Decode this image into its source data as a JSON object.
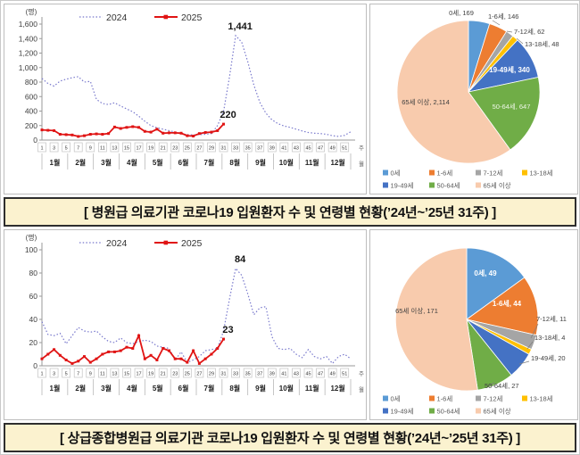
{
  "panels": [
    {
      "banner": "[ 병원급 의료기관 코로나19 입원환자 수 및 연령별 현황(’24년~’25년 31주) ]"
    },
    {
      "banner": "[ 상급종합병원급 의료기관 코로나19 입원환자 수 및 연령별 현황(’24년~’25년 31주) ]"
    }
  ],
  "chart_data": [
    {
      "id": "hospital-weekly-line",
      "type": "line",
      "title": "",
      "unit": "(명)",
      "ylim": [
        0,
        1600
      ],
      "ytick_step": 200,
      "grid": false,
      "legend_position": "top",
      "legend": [
        "2024",
        "2025"
      ],
      "x_axis": {
        "weeks": 52,
        "week_ticks": [
          1,
          3,
          5,
          7,
          9,
          11,
          13,
          15,
          17,
          19,
          21,
          23,
          25,
          27,
          29,
          31,
          33,
          35,
          37,
          39,
          41,
          43,
          45,
          47,
          49,
          51
        ],
        "week_suffix": "주",
        "month_labels": [
          "1월",
          "2월",
          "3월",
          "4월",
          "5월",
          "6월",
          "7월",
          "8월",
          "9월",
          "10월",
          "11월",
          "12월"
        ],
        "month_suffix": "월"
      },
      "series": [
        {
          "name": "2024",
          "color": "#7878cc",
          "style": "dotted",
          "values": [
            850,
            780,
            745,
            815,
            840,
            860,
            875,
            800,
            810,
            560,
            505,
            490,
            515,
            470,
            430,
            390,
            330,
            260,
            200,
            170,
            150,
            130,
            110,
            90,
            75,
            70,
            75,
            80,
            90,
            200,
            390,
            880,
            1441,
            1350,
            1080,
            760,
            520,
            370,
            280,
            225,
            195,
            175,
            150,
            125,
            105,
            95,
            90,
            80,
            60,
            50,
            65,
            115
          ]
        },
        {
          "name": "2025",
          "color": "#e01414",
          "style": "solid-marker",
          "values": [
            140,
            135,
            130,
            80,
            75,
            70,
            50,
            60,
            80,
            85,
            80,
            90,
            180,
            160,
            175,
            185,
            175,
            120,
            110,
            150,
            95,
            100,
            100,
            95,
            60,
            55,
            90,
            105,
            110,
            130,
            220
          ]
        }
      ],
      "annotations": [
        {
          "text": "1,441",
          "week": 33,
          "value": 1441
        },
        {
          "text": "220",
          "week": 31,
          "value": 220
        }
      ]
    },
    {
      "id": "hospital-age-pie",
      "type": "pie",
      "title": "",
      "slices": [
        {
          "label": "0세",
          "value": 169,
          "display": "0세, 169",
          "color": "#5B9BD5"
        },
        {
          "label": "1-6세",
          "value": 146,
          "display": "1-6세, 146",
          "color": "#ED7D31"
        },
        {
          "label": "7-12세",
          "value": 62,
          "display": "7-12세, 62",
          "color": "#A5A5A5"
        },
        {
          "label": "13-18세",
          "value": 48,
          "display": "13-18세, 48",
          "color": "#FFC000"
        },
        {
          "label": "19-49세",
          "value": 340,
          "display": "19-49세, 340",
          "color": "#4472C4"
        },
        {
          "label": "50-64세",
          "value": 647,
          "display": "50-64세, 647",
          "color": "#70AD47"
        },
        {
          "label": "65세 이상",
          "value": 2114,
          "display": "65세 이상, 2,114",
          "color": "#F8CBAD"
        }
      ],
      "legend_rows": [
        [
          "0세",
          "1-6세",
          "7-12세",
          "13-18세"
        ],
        [
          "19-49세",
          "50-64세",
          "65세 이상"
        ]
      ]
    },
    {
      "id": "tertiary-weekly-line",
      "type": "line",
      "title": "",
      "unit": "(명)",
      "ylim": [
        0,
        100
      ],
      "ytick_step": 20,
      "grid": false,
      "legend_position": "top",
      "legend": [
        "2024",
        "2025"
      ],
      "x_axis": {
        "weeks": 52,
        "week_ticks": [
          1,
          3,
          5,
          7,
          9,
          11,
          13,
          15,
          17,
          19,
          21,
          23,
          25,
          27,
          29,
          31,
          33,
          35,
          37,
          39,
          41,
          43,
          45,
          47,
          49,
          51
        ],
        "week_suffix": "주",
        "month_labels": [
          "1월",
          "2월",
          "3월",
          "4월",
          "5월",
          "6월",
          "7월",
          "8월",
          "9월",
          "10월",
          "11월",
          "12월"
        ],
        "month_suffix": "월"
      },
      "series": [
        {
          "name": "2024",
          "color": "#7878cc",
          "style": "dotted",
          "values": [
            38,
            27,
            26,
            28,
            19,
            26,
            33,
            30,
            29,
            30,
            25,
            21,
            20,
            24,
            20,
            19,
            21,
            22,
            21,
            17,
            16,
            15,
            5,
            12,
            3,
            5,
            8,
            13,
            14,
            15,
            30,
            58,
            84,
            78,
            62,
            44,
            50,
            51,
            25,
            15,
            14,
            15,
            10,
            7,
            14,
            8,
            6,
            8,
            2,
            8,
            10,
            6
          ]
        },
        {
          "name": "2025",
          "color": "#e01414",
          "style": "solid-marker",
          "values": [
            6,
            10,
            14,
            9,
            5,
            2,
            4,
            8,
            3,
            6,
            10,
            12,
            12,
            13,
            16,
            15,
            26,
            6,
            9,
            5,
            15,
            13,
            6,
            6,
            3,
            13,
            2,
            6,
            10,
            15,
            23
          ]
        }
      ],
      "annotations": [
        {
          "text": "84",
          "week": 33,
          "value": 84
        },
        {
          "text": "23",
          "week": 31,
          "value": 23
        }
      ]
    },
    {
      "id": "tertiary-age-pie",
      "type": "pie",
      "title": "",
      "slices": [
        {
          "label": "0세",
          "value": 49,
          "display": "0세, 49",
          "color": "#5B9BD5"
        },
        {
          "label": "1-6세",
          "value": 44,
          "display": "1-6세, 44",
          "color": "#ED7D31"
        },
        {
          "label": "7-12세",
          "value": 11,
          "display": "7-12세, 11",
          "color": "#A5A5A5"
        },
        {
          "label": "13-18세",
          "value": 4,
          "display": "13-18세, 4",
          "color": "#FFC000"
        },
        {
          "label": "19-49세",
          "value": 20,
          "display": "19-49세, 20",
          "color": "#4472C4"
        },
        {
          "label": "50-64세",
          "value": 27,
          "display": "50-64세, 27",
          "color": "#70AD47"
        },
        {
          "label": "65세 이상",
          "value": 171,
          "display": "65세 이상, 171",
          "color": "#F8CBAD"
        }
      ],
      "legend_rows": [
        [
          "0세",
          "1-6세",
          "7-12세",
          "13-18세"
        ],
        [
          "19-49세",
          "50-64세",
          "65세 이상"
        ]
      ]
    }
  ]
}
